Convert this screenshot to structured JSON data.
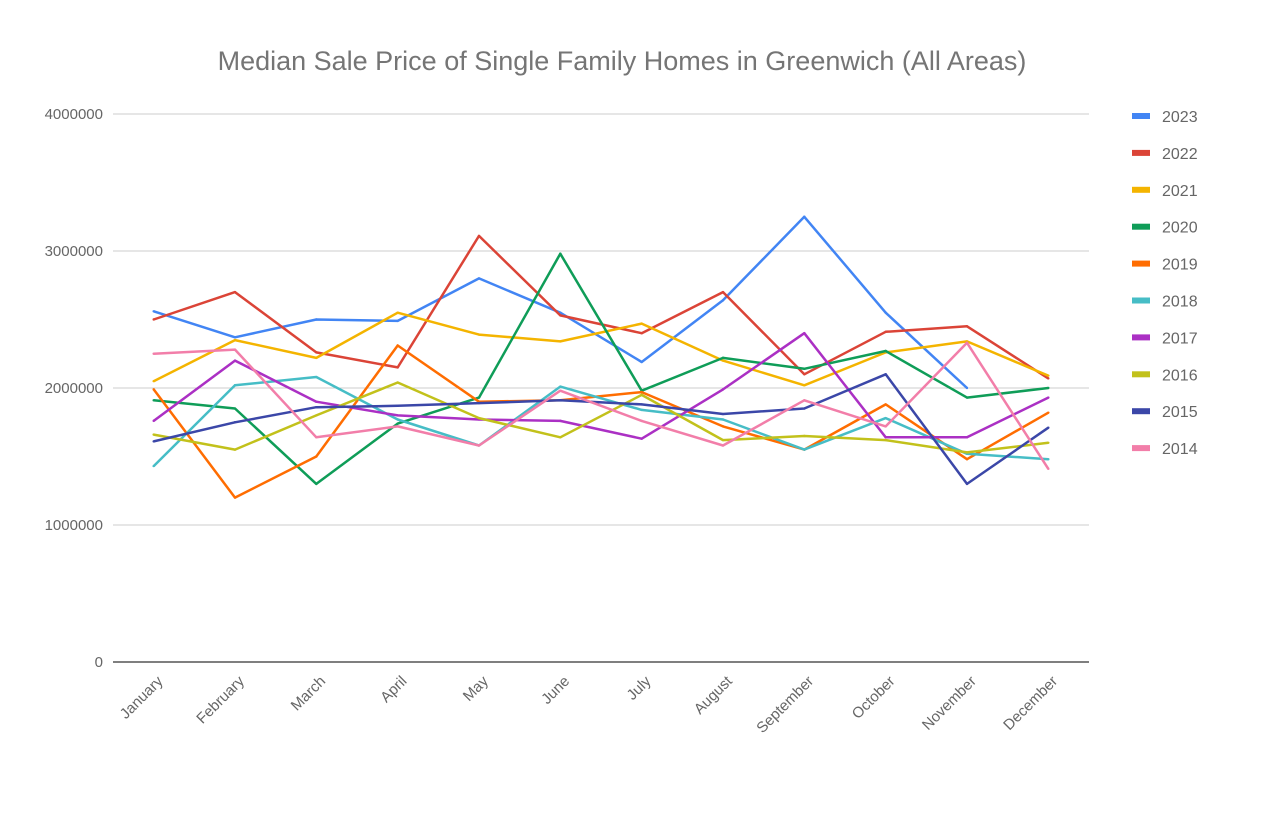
{
  "chart_data": {
    "type": "line",
    "title": "Median Sale Price of Single Family Homes in Greenwich (All Areas)",
    "xlabel": "",
    "ylabel": "",
    "ylim": [
      0,
      4000000
    ],
    "yticks": [
      "0",
      "1000000",
      "2000000",
      "3000000",
      "4000000"
    ],
    "ytick_values": [
      0,
      1000000,
      2000000,
      3000000,
      4000000
    ],
    "grid": true,
    "legend_position": "right",
    "categories": [
      "January",
      "February",
      "March",
      "April",
      "May",
      "June",
      "July",
      "August",
      "September",
      "October",
      "November",
      "December"
    ],
    "series": [
      {
        "name": "2023",
        "color": "#4285F4",
        "values": [
          2560000,
          2370000,
          2500000,
          2490000,
          2800000,
          2550000,
          2190000,
          2640000,
          3250000,
          2550000,
          2000000,
          null
        ]
      },
      {
        "name": "2022",
        "color": "#DB4437",
        "values": [
          2500000,
          2700000,
          2260000,
          2150000,
          3110000,
          2530000,
          2400000,
          2700000,
          2100000,
          2410000,
          2450000,
          2070000
        ]
      },
      {
        "name": "2021",
        "color": "#F4B400",
        "values": [
          2050000,
          2350000,
          2220000,
          2550000,
          2390000,
          2340000,
          2470000,
          2200000,
          2020000,
          2260000,
          2340000,
          2090000
        ]
      },
      {
        "name": "2020",
        "color": "#0F9D58",
        "values": [
          1910000,
          1850000,
          1300000,
          1740000,
          1930000,
          2980000,
          1980000,
          2220000,
          2140000,
          2270000,
          1930000,
          2000000
        ]
      },
      {
        "name": "2019",
        "color": "#FF6D01",
        "values": [
          1990000,
          1200000,
          1500000,
          2310000,
          1900000,
          1910000,
          1970000,
          1720000,
          1550000,
          1880000,
          1480000,
          1820000
        ]
      },
      {
        "name": "2018",
        "color": "#46BDC6",
        "values": [
          1430000,
          2020000,
          2080000,
          1770000,
          1580000,
          2010000,
          1840000,
          1770000,
          1550000,
          1780000,
          1520000,
          1480000
        ]
      },
      {
        "name": "2017",
        "color": "#AB30C4",
        "values": [
          1760000,
          2200000,
          1900000,
          1800000,
          1770000,
          1760000,
          1630000,
          1990000,
          2400000,
          1640000,
          1640000,
          1930000
        ]
      },
      {
        "name": "2016",
        "color": "#C2C11B",
        "values": [
          1660000,
          1550000,
          1800000,
          2040000,
          1780000,
          1640000,
          1950000,
          1620000,
          1650000,
          1620000,
          1530000,
          1600000
        ]
      },
      {
        "name": "2015",
        "color": "#3B47A8",
        "values": [
          1610000,
          1750000,
          1860000,
          1870000,
          1890000,
          1910000,
          1880000,
          1810000,
          1850000,
          2100000,
          1300000,
          1710000
        ]
      },
      {
        "name": "2014",
        "color": "#F27EA9",
        "values": [
          2250000,
          2280000,
          1640000,
          1720000,
          1580000,
          1980000,
          1760000,
          1580000,
          1910000,
          1720000,
          2330000,
          1410000
        ]
      }
    ]
  }
}
